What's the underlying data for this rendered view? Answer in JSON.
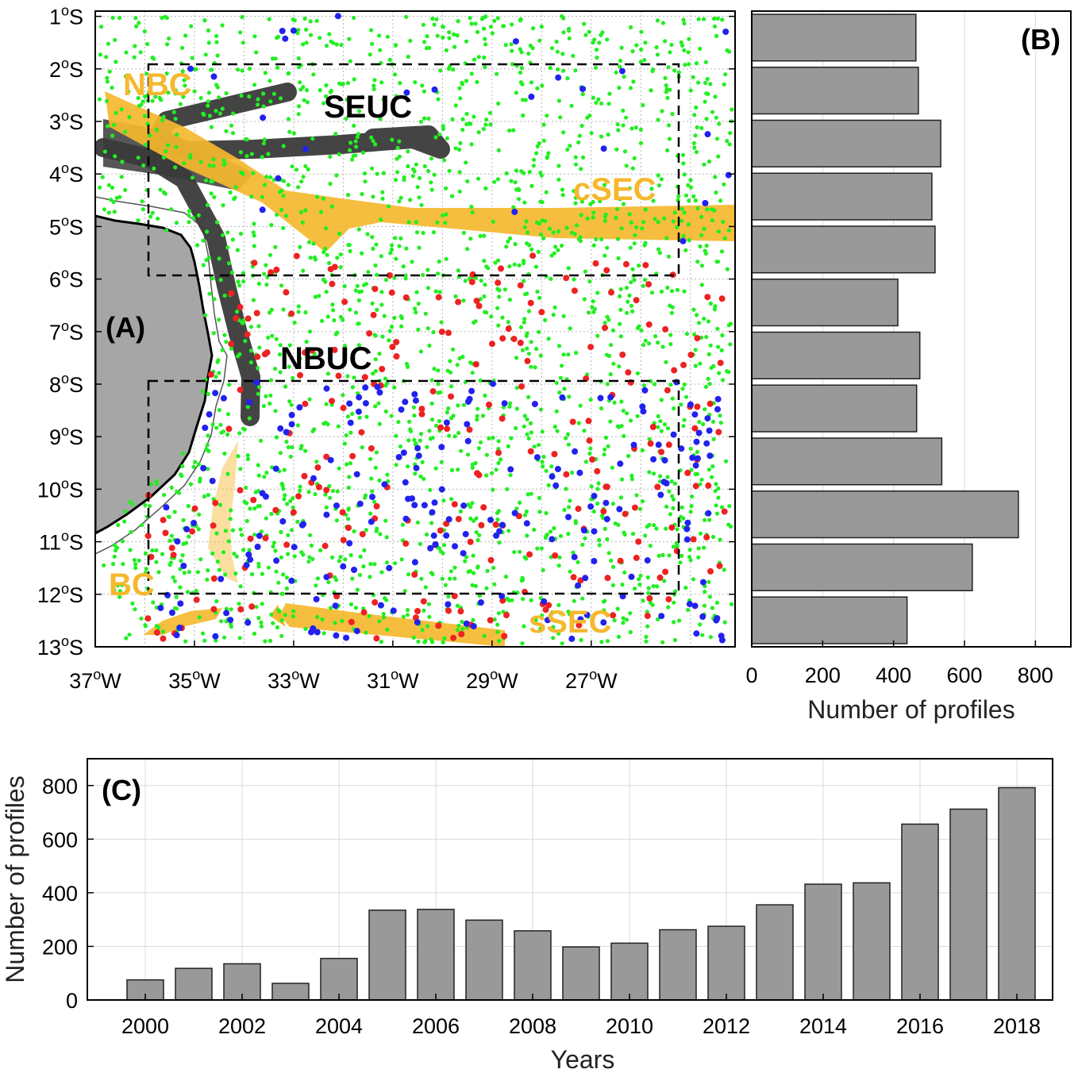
{
  "chart_data": [
    {
      "type": "scatter",
      "panel_label": "(A)",
      "x_ticks": [
        "37°W",
        "35°W",
        "33°W",
        "31°W",
        "29°W",
        "27°W"
      ],
      "y_ticks": [
        "1°S",
        "2°S",
        "3°S",
        "4°S",
        "5°S",
        "6°S",
        "7°S",
        "8°S",
        "9°S",
        "10°S",
        "11°S",
        "12°S",
        "13°S"
      ],
      "xlim": [
        -37,
        -24.1
      ],
      "ylim": [
        -13,
        -0.9
      ],
      "current_labels": [
        {
          "text": "NBC",
          "color": "#f5b82e"
        },
        {
          "text": "SEUC",
          "color": "#000000"
        },
        {
          "text": "cSEC",
          "color": "#f5b82e"
        },
        {
          "text": "NBUC",
          "color": "#000000"
        },
        {
          "text": "BC",
          "color": "#f5b82e"
        },
        {
          "text": "sSEC",
          "color": "#f5b82e"
        }
      ],
      "boxes": [
        {
          "lon": [
            -36,
            -26.1
          ],
          "lat": [
            -6,
            -2
          ]
        },
        {
          "lon": [
            -36,
            -26.1
          ],
          "lat": [
            -12,
            -8
          ]
        }
      ],
      "colors": {
        "land": "#a6a6a6",
        "profiles_main": "#22ee22",
        "profiles_red": "#ee2222",
        "profiles_blue": "#2222ee",
        "currents_dark": "#3a3a3a",
        "currents_gold": "#f5b82e"
      }
    },
    {
      "type": "bar",
      "orientation": "horizontal",
      "panel_label": "(B)",
      "xlabel": "Number of profiles",
      "xlim": [
        0,
        900
      ],
      "x_ticks": [
        "0",
        "200",
        "400",
        "600",
        "800"
      ],
      "categories": [
        "1°S–2°S",
        "2°S–3°S",
        "3°S–4°S",
        "4°S–5°S",
        "5°S–6°S",
        "6°S–7°S",
        "7°S–8°S",
        "8°S–9°S",
        "9°S–10°S",
        "10°S–11°S",
        "11°S–12°S",
        "12°S–13°S"
      ],
      "values": [
        463,
        470,
        533,
        508,
        517,
        412,
        474,
        465,
        536,
        752,
        622,
        438
      ],
      "grid": true
    },
    {
      "type": "bar",
      "panel_label": "(C)",
      "xlabel": "Years",
      "ylabel": "Number of profiles",
      "ylim": [
        0,
        900
      ],
      "y_ticks": [
        "0",
        "200",
        "400",
        "600",
        "800"
      ],
      "x_ticks": [
        "2000",
        "2002",
        "2004",
        "2006",
        "2008",
        "2010",
        "2012",
        "2014",
        "2016",
        "2018"
      ],
      "categories": [
        2000,
        2001,
        2002,
        2003,
        2004,
        2005,
        2006,
        2007,
        2008,
        2009,
        2010,
        2011,
        2012,
        2013,
        2014,
        2015,
        2016,
        2017,
        2018
      ],
      "values": [
        75,
        118,
        135,
        62,
        155,
        335,
        338,
        298,
        258,
        198,
        212,
        262,
        275,
        355,
        432,
        437,
        656,
        712,
        792
      ],
      "grid": true
    }
  ]
}
